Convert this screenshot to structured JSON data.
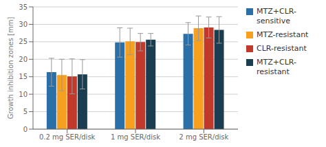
{
  "chart_data": {
    "type": "bar",
    "categories": [
      "0.2 mg SER/disk",
      "1 mg SER/disk",
      "2 mg SER/disk"
    ],
    "series": [
      {
        "name": "MTZ+CLR-\nsensitive",
        "color": "#2B6FA8",
        "values": [
          16.3,
          24.8,
          27.3
        ],
        "errors": [
          4.0,
          4.2,
          3.2
        ]
      },
      {
        "name": "MTZ-resistant",
        "color": "#F7A020",
        "values": [
          15.5,
          25.1,
          28.9
        ],
        "errors": [
          4.5,
          3.8,
          3.5
        ]
      },
      {
        "name": "CLR-resistant",
        "color": "#C0392B",
        "values": [
          15.1,
          24.9,
          29.1
        ],
        "errors": [
          5.0,
          2.5,
          3.0
        ]
      },
      {
        "name": "MTZ+CLR-\nresistant",
        "color": "#1B3D50",
        "values": [
          15.7,
          25.6,
          28.4
        ],
        "errors": [
          4.2,
          1.8,
          3.8
        ]
      }
    ],
    "ylabel": "Growth inhibition zones [mm]",
    "ylim": [
      0,
      35
    ],
    "yticks": [
      0,
      5,
      10,
      15,
      20,
      25,
      30,
      35
    ],
    "grid": true,
    "legend": "right"
  }
}
